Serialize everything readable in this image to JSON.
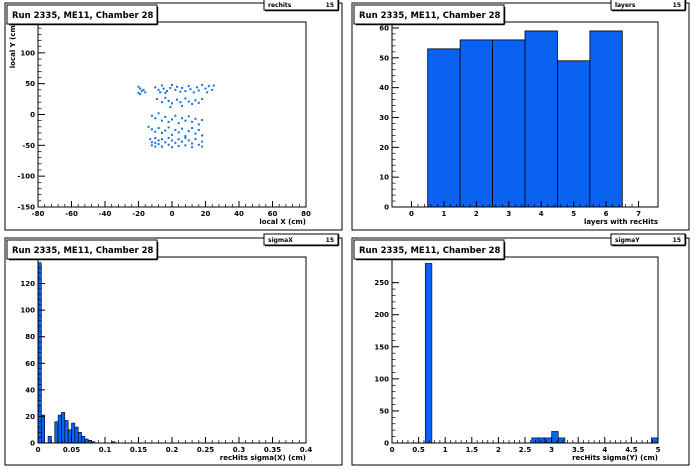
{
  "chart_data": [
    {
      "type": "scatter",
      "title": "Run 2335, ME11, Chamber 28",
      "stat_box": "rechits",
      "stat_value": "15",
      "xlabel": "local X (cm)",
      "ylabel": "local Y (cm)",
      "xlim": [
        -80,
        80
      ],
      "ylim": [
        -150,
        150
      ],
      "x_ticks": [
        -80,
        -60,
        -40,
        -20,
        0,
        20,
        40,
        60,
        80
      ],
      "y_ticks": [
        -150,
        -100,
        -50,
        0,
        50,
        100,
        150
      ],
      "color": "#1a6edb",
      "points": [
        [
          -20,
          45
        ],
        [
          -19,
          42
        ],
        [
          -18,
          38
        ],
        [
          -20,
          35
        ],
        [
          -17,
          40
        ],
        [
          -16,
          36
        ],
        [
          -19,
          33
        ],
        [
          -10,
          44
        ],
        [
          -8,
          40
        ],
        [
          -6,
          47
        ],
        [
          -5,
          42
        ],
        [
          -3,
          38
        ],
        [
          -1,
          43
        ],
        [
          -4,
          35
        ],
        [
          -7,
          36
        ],
        [
          0,
          48
        ],
        [
          2,
          40
        ],
        [
          3,
          45
        ],
        [
          5,
          37
        ],
        [
          6,
          43
        ],
        [
          8,
          38
        ],
        [
          10,
          46
        ],
        [
          11,
          41
        ],
        [
          13,
          36
        ],
        [
          15,
          44
        ],
        [
          16,
          39
        ],
        [
          18,
          48
        ],
        [
          20,
          42
        ],
        [
          21,
          36
        ],
        [
          22,
          46
        ],
        [
          24,
          40
        ],
        [
          25,
          47
        ],
        [
          -9,
          25
        ],
        [
          -6,
          20
        ],
        [
          -4,
          27
        ],
        [
          -2,
          22
        ],
        [
          0,
          18
        ],
        [
          3,
          24
        ],
        [
          5,
          20
        ],
        [
          8,
          26
        ],
        [
          10,
          21
        ],
        [
          12,
          17
        ],
        [
          14,
          23
        ],
        [
          16,
          19
        ],
        [
          18,
          25
        ],
        [
          6,
          14
        ],
        [
          -1,
          12
        ],
        [
          -12,
          -2
        ],
        [
          -10,
          -6
        ],
        [
          -8,
          2
        ],
        [
          -6,
          -10
        ],
        [
          -4,
          -4
        ],
        [
          -2,
          -12
        ],
        [
          0,
          -8
        ],
        [
          2,
          -2
        ],
        [
          4,
          -14
        ],
        [
          6,
          -6
        ],
        [
          8,
          -10
        ],
        [
          10,
          -3
        ],
        [
          12,
          -12
        ],
        [
          14,
          -7
        ],
        [
          16,
          -16
        ],
        [
          18,
          -9
        ],
        [
          -14,
          -20
        ],
        [
          -12,
          -24
        ],
        [
          -10,
          -28
        ],
        [
          -8,
          -22
        ],
        [
          -6,
          -30
        ],
        [
          -4,
          -26
        ],
        [
          -2,
          -21
        ],
        [
          0,
          -33
        ],
        [
          2,
          -25
        ],
        [
          4,
          -29
        ],
        [
          6,
          -23
        ],
        [
          8,
          -35
        ],
        [
          10,
          -27
        ],
        [
          12,
          -22
        ],
        [
          14,
          -31
        ],
        [
          16,
          -25
        ],
        [
          18,
          -34
        ],
        [
          -13,
          -40
        ],
        [
          -12,
          -45
        ],
        [
          -12,
          -50
        ],
        [
          -10,
          -38
        ],
        [
          -10,
          -46
        ],
        [
          -10,
          -52
        ],
        [
          -8,
          -42
        ],
        [
          -8,
          -48
        ],
        [
          -6,
          -40
        ],
        [
          -6,
          -52
        ],
        [
          -4,
          -45
        ],
        [
          -2,
          -38
        ],
        [
          -2,
          -49
        ],
        [
          0,
          -42
        ],
        [
          0,
          -53
        ],
        [
          2,
          -46
        ],
        [
          4,
          -40
        ],
        [
          4,
          -51
        ],
        [
          6,
          -44
        ],
        [
          8,
          -38
        ],
        [
          8,
          -50
        ],
        [
          10,
          -42
        ],
        [
          12,
          -47
        ],
        [
          12,
          -53
        ],
        [
          14,
          -40
        ],
        [
          16,
          -49
        ],
        [
          18,
          -44
        ],
        [
          18,
          -52
        ]
      ]
    },
    {
      "type": "bar",
      "title": "Run 2335, ME11, Chamber 28",
      "stat_box": "layers",
      "stat_value": "15",
      "xlabel": "layers with recHits",
      "ylabel": "",
      "xlim": [
        -0.6,
        7.6
      ],
      "ylim": [
        0,
        62
      ],
      "x_ticks": [
        0,
        1,
        2,
        3,
        4,
        5,
        6,
        7
      ],
      "y_ticks": [
        0,
        10,
        20,
        30,
        40,
        50,
        60
      ],
      "color": "#0a62f0",
      "bins": [
        [
          0.5,
          1.5
        ],
        [
          1.5,
          2.5
        ],
        [
          2.5,
          3.5
        ],
        [
          3.5,
          4.5
        ],
        [
          4.5,
          5.5
        ],
        [
          5.5,
          6.5
        ]
      ],
      "values": [
        53,
        56,
        56,
        59,
        49,
        59
      ]
    },
    {
      "type": "bar",
      "title": "Run 2335, ME11, Chamber 28",
      "stat_box": "sigmaX",
      "stat_value": "15",
      "xlabel": "recHits sigma(X) (cm)",
      "ylabel": "",
      "xlim": [
        0,
        0.4
      ],
      "ylim": [
        0,
        140
      ],
      "x_ticks": [
        0,
        0.05,
        0.1,
        0.15,
        0.2,
        0.25,
        0.3,
        0.35,
        0.4
      ],
      "y_ticks": [
        0,
        20,
        40,
        60,
        80,
        100,
        120,
        140
      ],
      "color": "#0a62f0",
      "bin_width": 0.005,
      "values": [
        135,
        21,
        0,
        5,
        0,
        16,
        21,
        23,
        17,
        10,
        15,
        12,
        8,
        5,
        3,
        2,
        1,
        0,
        0,
        0,
        0,
        0,
        1,
        0,
        0,
        0,
        0,
        0,
        0,
        0,
        0,
        0,
        0,
        0,
        0,
        0,
        0,
        0,
        0,
        0,
        0,
        0,
        0,
        0,
        0,
        0,
        0,
        0,
        0,
        0,
        0,
        0,
        0,
        0,
        0,
        0,
        0,
        0,
        0,
        0,
        0,
        0,
        0,
        0,
        0,
        0,
        0,
        0,
        0,
        0,
        0,
        0,
        0,
        0,
        0,
        0,
        0,
        0,
        0,
        0
      ]
    },
    {
      "type": "bar",
      "title": "Run 2335, ME11, Chamber 28",
      "stat_box": "sigmaY",
      "stat_value": "15",
      "xlabel": "recHits sigma(Y) (cm)",
      "ylabel": "",
      "xlim": [
        0,
        5
      ],
      "ylim": [
        0,
        290
      ],
      "x_ticks": [
        0,
        0.5,
        1,
        1.5,
        2,
        2.5,
        3,
        3.5,
        4,
        4.5,
        5
      ],
      "y_ticks": [
        0,
        50,
        100,
        150,
        200,
        250
      ],
      "color": "#0a62f0",
      "bin_width": 0.125,
      "values": [
        0,
        0,
        0,
        0,
        0,
        280,
        0,
        0,
        0,
        0,
        0,
        0,
        0,
        0,
        0,
        0,
        0,
        0,
        0,
        0,
        0,
        8,
        8,
        8,
        18,
        8,
        0,
        0,
        0,
        0,
        0,
        0,
        0,
        0,
        0,
        0,
        0,
        0,
        0,
        8
      ]
    }
  ]
}
